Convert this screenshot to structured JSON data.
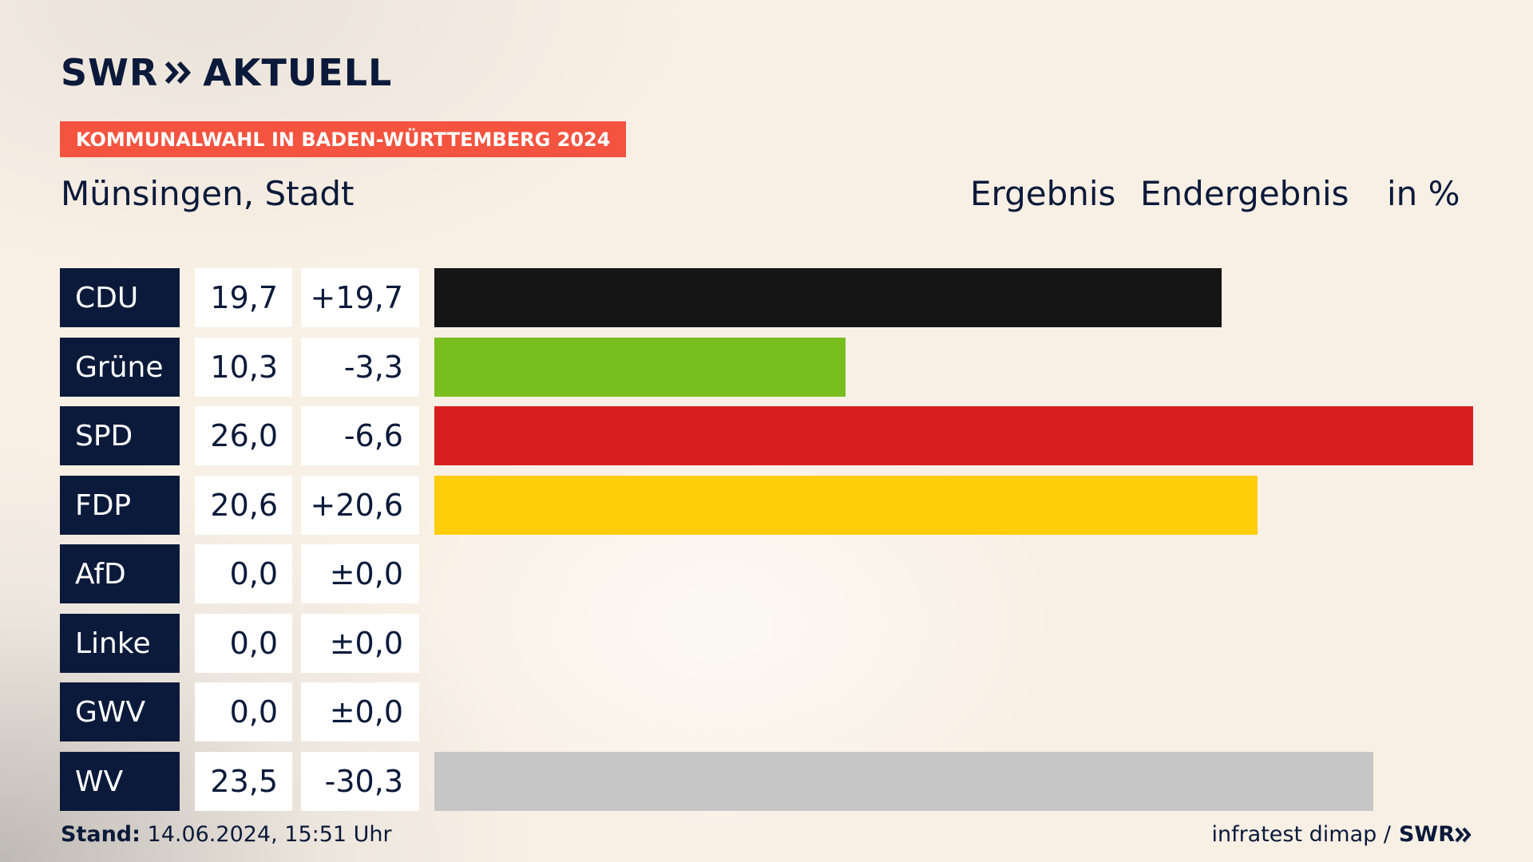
{
  "brand": {
    "logo_part1": "SWR",
    "logo_part2": "AKTUELL",
    "footer_brand": "SWR"
  },
  "badge": "KOMMUNALWAHL IN BADEN-WÜRTTEMBERG 2024",
  "place": "Münsingen, Stadt",
  "headers": {
    "result": "Ergebnis",
    "status": "Endergebnis",
    "unit": "in %"
  },
  "colors": {
    "navy": "#0b1a3a",
    "accent": "#f4533f",
    "CDU": "#151515",
    "Grüne": "#78be1e",
    "SPD": "#d81f1f",
    "FDP": "#ffcd0a",
    "AfD": "#009ee0",
    "Linke": "#be3075",
    "GWV": "#999999",
    "WV": "#c6c6c6"
  },
  "chart_data": {
    "type": "bar",
    "orientation": "horizontal",
    "title": "Münsingen, Stadt",
    "subtitle": "Ergebnis Endergebnis in %",
    "categories": [
      "CDU",
      "Grüne",
      "SPD",
      "FDP",
      "AfD",
      "Linke",
      "GWV",
      "WV"
    ],
    "values": [
      19.7,
      10.3,
      26.0,
      20.6,
      0.0,
      0.0,
      0.0,
      23.5
    ],
    "value_labels": [
      "19,7",
      "10,3",
      "26,0",
      "20,6",
      "0,0",
      "0,0",
      "0,0",
      "23,5"
    ],
    "change_labels": [
      "+19,7",
      "-3,3",
      "-6,6",
      "+20,6",
      "±0,0",
      "±0,0",
      "±0,0",
      "-30,3"
    ],
    "xlim": [
      0,
      26.0
    ]
  },
  "footer": {
    "stand_label": "Stand:",
    "stand_value": "14.06.2024, 15:51 Uhr",
    "source": "infratest dimap /"
  }
}
